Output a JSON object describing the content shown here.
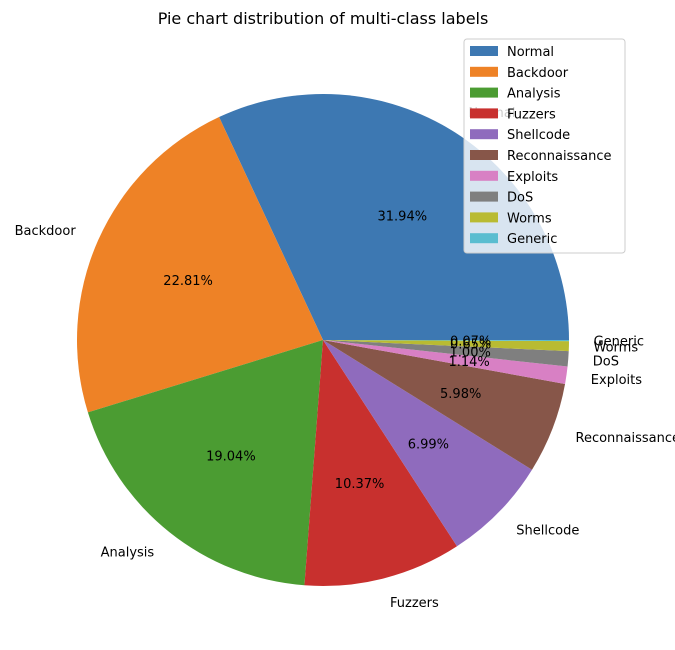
{
  "chart_data": {
    "type": "pie",
    "title": "Pie chart distribution of multi-class labels",
    "labels": [
      "Normal",
      "Backdoor",
      "Analysis",
      "Fuzzers",
      "Shellcode",
      "Reconnaissance",
      "Exploits",
      "DoS",
      "Worms",
      "Generic"
    ],
    "values": [
      31.94,
      22.81,
      19.04,
      10.37,
      6.99,
      5.98,
      1.14,
      1.0,
      0.65,
      0.07
    ],
    "pct_labels": [
      "31.94%",
      "22.81%",
      "19.04%",
      "10.37%",
      "6.99%",
      "5.98%",
      "1.14%",
      "1.00%",
      "0.65%",
      "0.07%"
    ],
    "colors": [
      "#3d78b2",
      "#ee8226",
      "#4b9c32",
      "#c8302e",
      "#8f6bbd",
      "#875649",
      "#d880c4",
      "#7f7f7f",
      "#b9bb32",
      "#5abdd0"
    ],
    "start_angle": 0,
    "direction": "counterclockwise",
    "legend": {
      "position": "top-right"
    }
  }
}
